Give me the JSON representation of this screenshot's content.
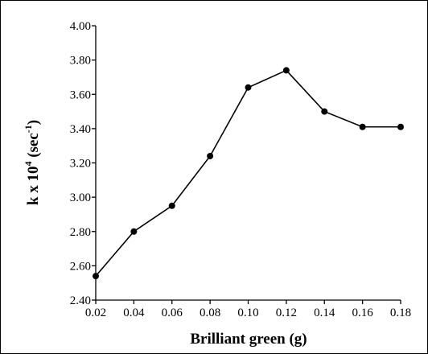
{
  "chart_data": {
    "type": "line",
    "title": "",
    "xlabel": "Brilliant green (g)",
    "ylabel": {
      "base": "k x 10",
      "exp": "4",
      "unit_open": " (sec",
      "unit_exp": "-1",
      "unit_close": ")"
    },
    "x": [
      0.02,
      0.04,
      0.06,
      0.08,
      0.1,
      0.12,
      0.14,
      0.16,
      0.18
    ],
    "y": [
      2.54,
      2.8,
      2.95,
      3.24,
      3.64,
      3.74,
      3.5,
      3.41,
      3.41
    ],
    "xlim": [
      0.02,
      0.18
    ],
    "ylim": [
      2.4,
      4.0
    ],
    "x_tick_labels": [
      "0.02",
      "0.04",
      "0.06",
      "0.08",
      "0.10",
      "0.12",
      "0.14",
      "0.16",
      "0.18"
    ],
    "y_tick_labels": [
      "2.40",
      "2.60",
      "2.80",
      "3.00",
      "3.20",
      "3.40",
      "3.60",
      "3.80",
      "4.00"
    ],
    "grid": false,
    "legend": "none",
    "colors": {
      "line": "#000000",
      "marker": "#000000",
      "axis": "#000000"
    }
  }
}
